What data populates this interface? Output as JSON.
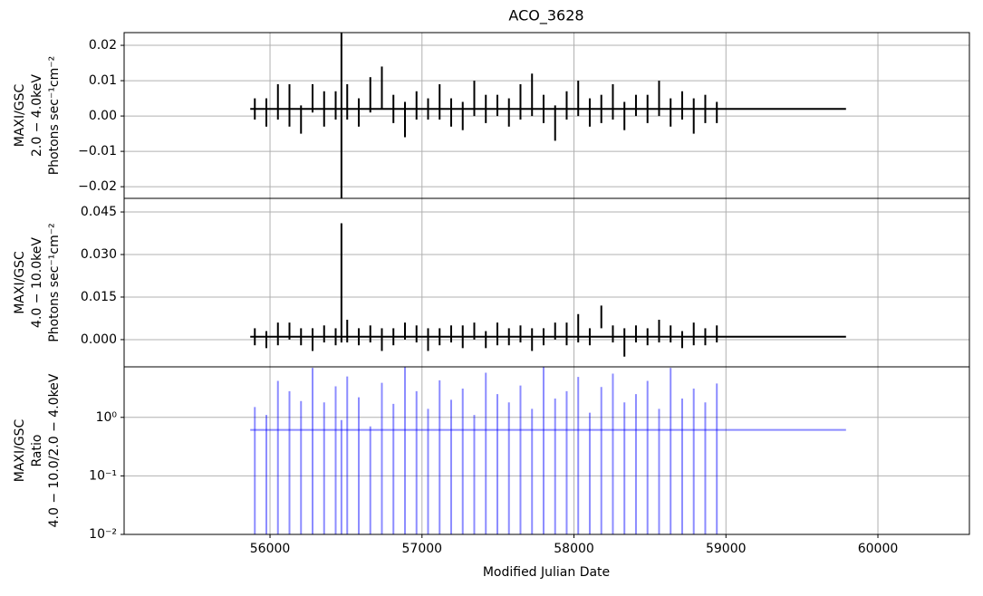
{
  "chart_data": [
    {
      "type": "errorbar",
      "title": "ACO_3628",
      "ylabel": [
        "MAXI/GSC",
        "2.0 − 4.0keV",
        "Photons sec⁻¹cm⁻²"
      ],
      "color": "#000000",
      "grid": true,
      "ylim": [
        -0.0233,
        0.0236
      ],
      "yticks": [
        {
          "value": -0.02,
          "label": "−0.02"
        },
        {
          "value": -0.01,
          "label": "−0.01"
        },
        {
          "value": 0,
          "label": "0.00"
        },
        0.01,
        0.02
      ],
      "x": [
        55900,
        55976,
        56052,
        56128,
        56204,
        56280,
        56356,
        56432,
        56470,
        56508,
        56584,
        56660,
        56736,
        56812,
        56888,
        56964,
        57040,
        57116,
        57192,
        57268,
        57344,
        57420,
        57496,
        57572,
        57648,
        57724,
        57800,
        57876,
        57952,
        58028,
        58104,
        58180,
        58256,
        58332,
        58408,
        58484,
        58560,
        58636,
        58712,
        58788,
        58864,
        58940
      ],
      "values": [
        0.002,
        0.001,
        0.004,
        0.003,
        -0.001,
        0.005,
        0.002,
        0.003,
        0.0,
        0.004,
        0.001,
        0.006,
        0.008,
        0.002,
        -0.001,
        0.003,
        0.002,
        0.004,
        0.001,
        0.0,
        0.005,
        0.002,
        0.003,
        0.001,
        0.004,
        0.006,
        0.002,
        -0.002,
        0.003,
        0.005,
        0.001,
        0.002,
        0.004,
        0.0,
        0.003,
        0.002,
        0.005,
        0.001,
        0.003,
        0.0,
        0.002,
        0.001
      ],
      "errors": [
        0.003,
        0.004,
        0.005,
        0.006,
        0.004,
        0.004,
        0.005,
        0.004,
        0.026,
        0.005,
        0.004,
        0.005,
        0.006,
        0.004,
        0.005,
        0.004,
        0.003,
        0.005,
        0.004,
        0.004,
        0.005,
        0.004,
        0.003,
        0.004,
        0.005,
        0.006,
        0.004,
        0.005,
        0.004,
        0.005,
        0.004,
        0.004,
        0.005,
        0.004,
        0.003,
        0.004,
        0.005,
        0.004,
        0.004,
        0.005,
        0.004,
        0.003
      ],
      "mean_line": {
        "x": [
          55870,
          59790
        ],
        "values": [
          0.002,
          0.002
        ]
      }
    },
    {
      "type": "errorbar",
      "ylabel": [
        "MAXI/GSC",
        "4.0 − 10.0keV",
        "Photons sec⁻¹cm⁻²"
      ],
      "color": "#000000",
      "grid": true,
      "ylim": [
        -0.0096,
        0.0498
      ],
      "yticks": [
        {
          "value": 0,
          "label": "0.000"
        },
        {
          "value": 0.015,
          "label": "0.015"
        },
        {
          "value": 0.03,
          "label": "0.030"
        },
        {
          "value": 0.045,
          "label": "0.045"
        }
      ],
      "x": [
        55900,
        55976,
        56052,
        56128,
        56204,
        56280,
        56356,
        56432,
        56470,
        56508,
        56584,
        56660,
        56736,
        56812,
        56888,
        56964,
        57040,
        57116,
        57192,
        57268,
        57344,
        57420,
        57496,
        57572,
        57648,
        57724,
        57800,
        57876,
        57952,
        58028,
        58104,
        58180,
        58256,
        58332,
        58408,
        58484,
        58560,
        58636,
        58712,
        58788,
        58864,
        58940
      ],
      "values": [
        0.001,
        0.0,
        0.002,
        0.003,
        0.001,
        0.0,
        0.002,
        0.001,
        0.02,
        0.003,
        0.001,
        0.002,
        0.0,
        0.001,
        0.003,
        0.002,
        0.0,
        0.001,
        0.002,
        0.001,
        0.003,
        0.0,
        0.002,
        0.001,
        0.002,
        0.0,
        0.001,
        0.003,
        0.002,
        0.004,
        0.001,
        0.008,
        0.002,
        -0.001,
        0.002,
        0.001,
        0.003,
        0.002,
        0.0,
        0.002,
        0.001,
        0.002
      ],
      "errors": [
        0.003,
        0.003,
        0.004,
        0.003,
        0.003,
        0.004,
        0.003,
        0.003,
        0.021,
        0.004,
        0.003,
        0.003,
        0.004,
        0.003,
        0.003,
        0.003,
        0.004,
        0.003,
        0.003,
        0.004,
        0.003,
        0.003,
        0.004,
        0.003,
        0.003,
        0.004,
        0.003,
        0.003,
        0.004,
        0.005,
        0.003,
        0.004,
        0.003,
        0.005,
        0.003,
        0.003,
        0.004,
        0.003,
        0.003,
        0.004,
        0.003,
        0.003
      ],
      "mean_line": {
        "x": [
          55870,
          59790
        ],
        "values": [
          0.001,
          0.001
        ]
      }
    },
    {
      "type": "errorbar",
      "log_y": true,
      "ylabel": [
        "MAXI/GSC",
        "Ratio",
        "4.0 − 10.0/2.0 − 4.0keV"
      ],
      "xlabel": "Modified Julian Date",
      "color": "#0000ff",
      "grid": true,
      "xlim": [
        55040,
        60602
      ],
      "xticks": [
        56000,
        57000,
        58000,
        59000,
        60000
      ],
      "ylim": [
        0.01,
        7.3
      ],
      "yticks": [
        {
          "value": 0.01,
          "label": "10⁻²"
        },
        {
          "value": 0.1,
          "label": "10⁻¹"
        },
        {
          "value": 1,
          "label": "10⁰"
        }
      ],
      "x": [
        55900,
        55976,
        56052,
        56128,
        56204,
        56280,
        56356,
        56432,
        56470,
        56508,
        56584,
        56660,
        56736,
        56812,
        56888,
        56964,
        57040,
        57116,
        57192,
        57268,
        57344,
        57420,
        57496,
        57572,
        57648,
        57724,
        57800,
        57876,
        57952,
        58028,
        58104,
        58180,
        58256,
        58332,
        58408,
        58484,
        58560,
        58636,
        58712,
        58788,
        58864,
        58940
      ],
      "values": [
        0.5,
        0.3,
        1.2,
        0.8,
        0.4,
        2.0,
        0.6,
        0.9,
        0.3,
        1.5,
        0.7,
        0.2,
        1.1,
        0.5,
        2.5,
        0.8,
        0.4,
        1.3,
        0.6,
        0.9,
        0.3,
        1.8,
        0.7,
        0.5,
        1.0,
        0.4,
        2.2,
        0.6,
        0.8,
        1.4,
        0.3,
        0.9,
        1.6,
        0.5,
        0.7,
        1.2,
        0.4,
        2.0,
        0.6,
        0.9,
        0.5,
        0.8
      ],
      "errors": [
        1.0,
        0.8,
        3.0,
        2.0,
        1.5,
        5.0,
        1.2,
        2.5,
        0.6,
        3.5,
        1.5,
        0.5,
        2.8,
        1.2,
        6.0,
        2.0,
        1.0,
        3.0,
        1.4,
        2.2,
        0.8,
        4.0,
        1.8,
        1.3,
        2.5,
        1.0,
        5.5,
        1.5,
        2.0,
        3.5,
        0.9,
        2.4,
        4.0,
        1.3,
        1.8,
        3.0,
        1.0,
        5.0,
        1.5,
        2.2,
        1.3,
        3.0
      ],
      "mean_line": {
        "x": [
          55870,
          59790
        ],
        "values": [
          0.61,
          0.61
        ]
      }
    }
  ]
}
